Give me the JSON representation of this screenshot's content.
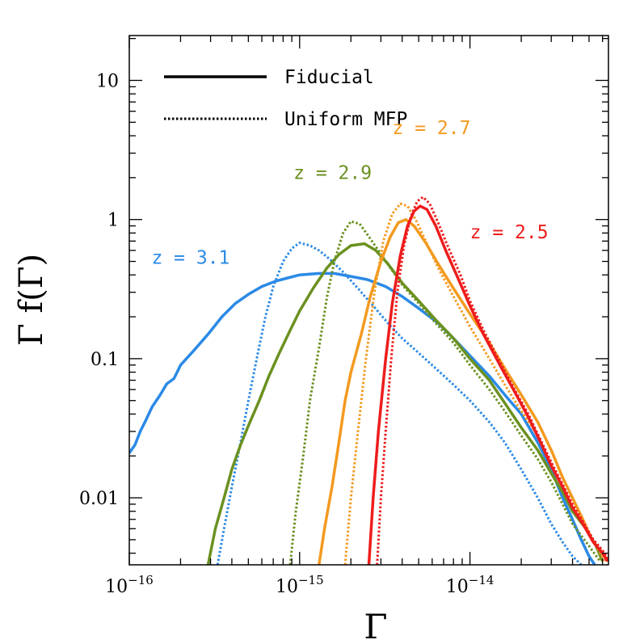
{
  "chart_data": {
    "type": "line",
    "xlabel": "Γ",
    "ylabel": "Γ f(Γ)",
    "xscale": "log",
    "yscale": "log",
    "xlim": [
      1e-16,
      6.5e-14
    ],
    "ylim": [
      0.0033,
      21
    ],
    "grid": false,
    "x_ticks": [
      {
        "value": 1e-16,
        "base": "10",
        "exp": "−16"
      },
      {
        "value": 1e-15,
        "base": "10",
        "exp": "−15"
      },
      {
        "value": 1e-14,
        "base": "10",
        "exp": "−14"
      }
    ],
    "y_ticks": [
      {
        "value": 10,
        "label": "10"
      },
      {
        "value": 1,
        "label": "1"
      },
      {
        "value": 0.1,
        "label": "0.1"
      },
      {
        "value": 0.01,
        "label": "0.01"
      }
    ],
    "legend": {
      "placement": "top-left",
      "entries": [
        {
          "label": "Fiducial",
          "style": "solid"
        },
        {
          "label": "Uniform MFP",
          "style": "dotted"
        }
      ]
    },
    "series": [
      {
        "name": "z = 3.1",
        "color": "#2b8ae6",
        "style": "solid",
        "points": [
          [
            1e-16,
            0.021
          ],
          [
            1.08e-16,
            0.024
          ],
          [
            1.16e-16,
            0.03
          ],
          [
            1.25e-16,
            0.036
          ],
          [
            1.36e-16,
            0.045
          ],
          [
            1.52e-16,
            0.055
          ],
          [
            1.66e-16,
            0.066
          ],
          [
            1.83e-16,
            0.072
          ],
          [
            2e-16,
            0.09
          ],
          [
            2.4e-16,
            0.115
          ],
          [
            2.9e-16,
            0.15
          ],
          [
            3.5e-16,
            0.2
          ],
          [
            4.2e-16,
            0.25
          ],
          [
            5e-16,
            0.29
          ],
          [
            6e-16,
            0.33
          ],
          [
            7.2e-16,
            0.36
          ],
          [
            8.5e-16,
            0.38
          ],
          [
            1e-15,
            0.4
          ],
          [
            1.3e-15,
            0.41
          ],
          [
            1.6e-15,
            0.41
          ],
          [
            2e-15,
            0.39
          ],
          [
            2.5e-15,
            0.37
          ],
          [
            3.2e-15,
            0.33
          ],
          [
            4e-15,
            0.28
          ],
          [
            5e-15,
            0.23
          ],
          [
            6.5e-15,
            0.18
          ],
          [
            8e-15,
            0.14
          ],
          [
            1e-14,
            0.105
          ],
          [
            1.3e-14,
            0.075
          ],
          [
            1.6e-14,
            0.055
          ],
          [
            2e-14,
            0.04
          ],
          [
            2.5e-14,
            0.025
          ],
          [
            3e-14,
            0.016
          ],
          [
            3.5e-14,
            0.01
          ],
          [
            4e-14,
            0.007
          ],
          [
            4.5e-14,
            0.005
          ],
          [
            5e-14,
            0.0038
          ],
          [
            5.4e-14,
            0.0033
          ]
        ]
      },
      {
        "name": "",
        "color": "#2b8ae6",
        "style": "dotted",
        "points": [
          [
            3.3e-16,
            0.0033
          ],
          [
            3.6e-16,
            0.006
          ],
          [
            4e-16,
            0.012
          ],
          [
            4.5e-16,
            0.025
          ],
          [
            5e-16,
            0.05
          ],
          [
            5.6e-16,
            0.1
          ],
          [
            6.3e-16,
            0.2
          ],
          [
            7e-16,
            0.33
          ],
          [
            8e-16,
            0.5
          ],
          [
            9e-16,
            0.62
          ],
          [
            1e-15,
            0.68
          ],
          [
            1.15e-15,
            0.65
          ],
          [
            1.3e-15,
            0.6
          ],
          [
            1.5e-15,
            0.52
          ],
          [
            1.8e-15,
            0.42
          ],
          [
            2.2e-15,
            0.32
          ],
          [
            2.7e-15,
            0.24
          ],
          [
            3.3e-15,
            0.18
          ],
          [
            4e-15,
            0.14
          ],
          [
            5e-15,
            0.11
          ],
          [
            6.3e-15,
            0.085
          ],
          [
            8e-15,
            0.065
          ],
          [
            1e-14,
            0.05
          ],
          [
            1.3e-14,
            0.035
          ],
          [
            1.6e-14,
            0.025
          ],
          [
            2e-14,
            0.016
          ],
          [
            2.5e-14,
            0.01
          ],
          [
            3e-14,
            0.0065
          ],
          [
            3.5e-14,
            0.0048
          ],
          [
            4e-14,
            0.0038
          ],
          [
            4.5e-14,
            0.0033
          ]
        ]
      },
      {
        "name": "z = 2.9",
        "color": "#6b9120",
        "style": "solid",
        "points": [
          [
            2.9e-16,
            0.0033
          ],
          [
            3.2e-16,
            0.006
          ],
          [
            3.6e-16,
            0.01
          ],
          [
            4e-16,
            0.016
          ],
          [
            4.5e-16,
            0.024
          ],
          [
            5e-16,
            0.033
          ],
          [
            5.8e-16,
            0.05
          ],
          [
            6.6e-16,
            0.075
          ],
          [
            7.6e-16,
            0.11
          ],
          [
            8.8e-16,
            0.16
          ],
          [
            1e-15,
            0.22
          ],
          [
            1.2e-15,
            0.32
          ],
          [
            1.45e-15,
            0.45
          ],
          [
            1.7e-15,
            0.56
          ],
          [
            2e-15,
            0.65
          ],
          [
            2.4e-15,
            0.67
          ],
          [
            2.8e-15,
            0.6
          ],
          [
            3.3e-15,
            0.48
          ],
          [
            4e-15,
            0.35
          ],
          [
            5e-15,
            0.26
          ],
          [
            6.3e-15,
            0.19
          ],
          [
            8e-15,
            0.14
          ],
          [
            1e-14,
            0.1
          ],
          [
            1.3e-14,
            0.07
          ],
          [
            1.6e-14,
            0.048
          ],
          [
            2e-14,
            0.032
          ],
          [
            2.5e-14,
            0.022
          ],
          [
            3e-14,
            0.015
          ],
          [
            3.5e-14,
            0.011
          ],
          [
            4e-14,
            0.008
          ],
          [
            4.8e-14,
            0.006
          ],
          [
            5.5e-14,
            0.0045
          ],
          [
            6e-14,
            0.0035
          ]
        ]
      },
      {
        "name": "",
        "color": "#6b9120",
        "style": "dotted",
        "points": [
          [
            8.8e-16,
            0.0033
          ],
          [
            9.5e-16,
            0.008
          ],
          [
            1.05e-15,
            0.02
          ],
          [
            1.15e-15,
            0.05
          ],
          [
            1.3e-15,
            0.12
          ],
          [
            1.45e-15,
            0.28
          ],
          [
            1.6e-15,
            0.5
          ],
          [
            1.8e-15,
            0.8
          ],
          [
            2e-15,
            0.97
          ],
          [
            2.25e-15,
            0.93
          ],
          [
            2.5e-15,
            0.78
          ],
          [
            2.9e-15,
            0.6
          ],
          [
            3.4e-15,
            0.45
          ],
          [
            4e-15,
            0.34
          ],
          [
            5e-15,
            0.25
          ],
          [
            6.3e-15,
            0.18
          ],
          [
            8e-15,
            0.13
          ],
          [
            1e-14,
            0.09
          ],
          [
            1.3e-14,
            0.06
          ],
          [
            1.6e-14,
            0.042
          ],
          [
            2e-14,
            0.028
          ],
          [
            2.5e-14,
            0.019
          ],
          [
            3e-14,
            0.013
          ],
          [
            3.5e-14,
            0.009
          ],
          [
            4e-14,
            0.0065
          ],
          [
            5e-14,
            0.0045
          ],
          [
            5.8e-14,
            0.0035
          ]
        ]
      },
      {
        "name": "z = 2.7",
        "color": "#f39a1f",
        "style": "solid",
        "points": [
          [
            1.3e-15,
            0.0033
          ],
          [
            1.4e-15,
            0.006
          ],
          [
            1.55e-15,
            0.012
          ],
          [
            1.7e-15,
            0.025
          ],
          [
            1.85e-15,
            0.05
          ],
          [
            2e-15,
            0.08
          ],
          [
            2.3e-15,
            0.15
          ],
          [
            2.6e-15,
            0.28
          ],
          [
            3e-15,
            0.5
          ],
          [
            3.4e-15,
            0.75
          ],
          [
            3.8e-15,
            0.95
          ],
          [
            4.2e-15,
            1.0
          ],
          [
            4.7e-15,
            0.9
          ],
          [
            5.5e-15,
            0.68
          ],
          [
            6.5e-15,
            0.48
          ],
          [
            8e-15,
            0.32
          ],
          [
            1e-14,
            0.21
          ],
          [
            1.3e-14,
            0.13
          ],
          [
            1.6e-14,
            0.085
          ],
          [
            2e-14,
            0.055
          ],
          [
            2.5e-14,
            0.035
          ],
          [
            3e-14,
            0.022
          ],
          [
            3.5e-14,
            0.014
          ],
          [
            4e-14,
            0.01
          ],
          [
            4.6e-14,
            0.007
          ],
          [
            5.2e-14,
            0.005
          ],
          [
            6e-14,
            0.004
          ],
          [
            6.5e-14,
            0.0035
          ]
        ]
      },
      {
        "name": "",
        "color": "#f39a1f",
        "style": "dotted",
        "points": [
          [
            1.85e-15,
            0.0033
          ],
          [
            2e-15,
            0.01
          ],
          [
            2.2e-15,
            0.03
          ],
          [
            2.45e-15,
            0.1
          ],
          [
            2.75e-15,
            0.3
          ],
          [
            3.1e-15,
            0.7
          ],
          [
            3.5e-15,
            1.1
          ],
          [
            3.9e-15,
            1.3
          ],
          [
            4.3e-15,
            1.25
          ],
          [
            4.8e-15,
            1.0
          ],
          [
            5.5e-15,
            0.7
          ],
          [
            6.5e-15,
            0.45
          ],
          [
            8e-15,
            0.28
          ],
          [
            1e-14,
            0.17
          ],
          [
            1.3e-14,
            0.1
          ],
          [
            1.6e-14,
            0.065
          ],
          [
            2e-14,
            0.042
          ],
          [
            2.5e-14,
            0.028
          ],
          [
            3e-14,
            0.018
          ],
          [
            3.5e-14,
            0.012
          ],
          [
            4e-14,
            0.0085
          ],
          [
            4.8e-14,
            0.006
          ],
          [
            5.5e-14,
            0.0045
          ],
          [
            6.2e-14,
            0.0035
          ]
        ]
      },
      {
        "name": "z = 2.5",
        "color": "#ee1c1c",
        "style": "solid",
        "points": [
          [
            2.55e-15,
            0.0033
          ],
          [
            2.7e-15,
            0.01
          ],
          [
            2.9e-15,
            0.03
          ],
          [
            3.2e-15,
            0.1
          ],
          [
            3.5e-15,
            0.25
          ],
          [
            3.9e-15,
            0.55
          ],
          [
            4.3e-15,
            0.9
          ],
          [
            4.7e-15,
            1.15
          ],
          [
            5.1e-15,
            1.25
          ],
          [
            5.6e-15,
            1.18
          ],
          [
            6.3e-15,
            0.9
          ],
          [
            7.2e-15,
            0.6
          ],
          [
            8.5e-15,
            0.38
          ],
          [
            1e-14,
            0.24
          ],
          [
            1.2e-14,
            0.15
          ],
          [
            1.5e-14,
            0.09
          ],
          [
            1.8e-14,
            0.06
          ],
          [
            2.2e-14,
            0.038
          ],
          [
            2.6e-14,
            0.025
          ],
          [
            3e-14,
            0.017
          ],
          [
            3.5e-14,
            0.012
          ],
          [
            4e-14,
            0.0085
          ],
          [
            4.6e-14,
            0.0065
          ],
          [
            5.3e-14,
            0.0048
          ],
          [
            6e-14,
            0.004
          ],
          [
            6.4e-14,
            0.0035
          ]
        ]
      },
      {
        "name": "",
        "color": "#ee1c1c",
        "style": "dotted",
        "points": [
          [
            2.85e-15,
            0.0033
          ],
          [
            3e-15,
            0.01
          ],
          [
            3.2e-15,
            0.03
          ],
          [
            3.45e-15,
            0.1
          ],
          [
            3.75e-15,
            0.3
          ],
          [
            4.1e-15,
            0.65
          ],
          [
            4.5e-15,
            1.05
          ],
          [
            4.9e-15,
            1.35
          ],
          [
            5.3e-15,
            1.45
          ],
          [
            5.8e-15,
            1.3
          ],
          [
            6.5e-15,
            0.95
          ],
          [
            7.5e-15,
            0.62
          ],
          [
            8.8e-15,
            0.4
          ],
          [
            1e-14,
            0.26
          ],
          [
            1.2e-14,
            0.16
          ],
          [
            1.5e-14,
            0.095
          ],
          [
            1.8e-14,
            0.062
          ],
          [
            2.2e-14,
            0.04
          ],
          [
            2.6e-14,
            0.026
          ],
          [
            3e-14,
            0.018
          ],
          [
            3.5e-14,
            0.0125
          ],
          [
            4e-14,
            0.009
          ],
          [
            4.6e-14,
            0.0068
          ],
          [
            5.3e-14,
            0.005
          ],
          [
            6e-14,
            0.0042
          ],
          [
            6.5e-14,
            0.0036
          ]
        ]
      }
    ],
    "annotations": [
      {
        "text": "z = 3.1",
        "color": "#2b8ae6",
        "at": [
          1.35e-16,
          0.48
        ]
      },
      {
        "text": "z = 2.9",
        "color": "#6b9120",
        "at": [
          9.2e-16,
          1.95
        ]
      },
      {
        "text": "z = 2.7",
        "color": "#f39a1f",
        "at": [
          3.5e-15,
          4.1
        ]
      },
      {
        "text": "z = 2.5",
        "color": "#ee1c1c",
        "at": [
          1e-14,
          0.73
        ]
      }
    ]
  }
}
